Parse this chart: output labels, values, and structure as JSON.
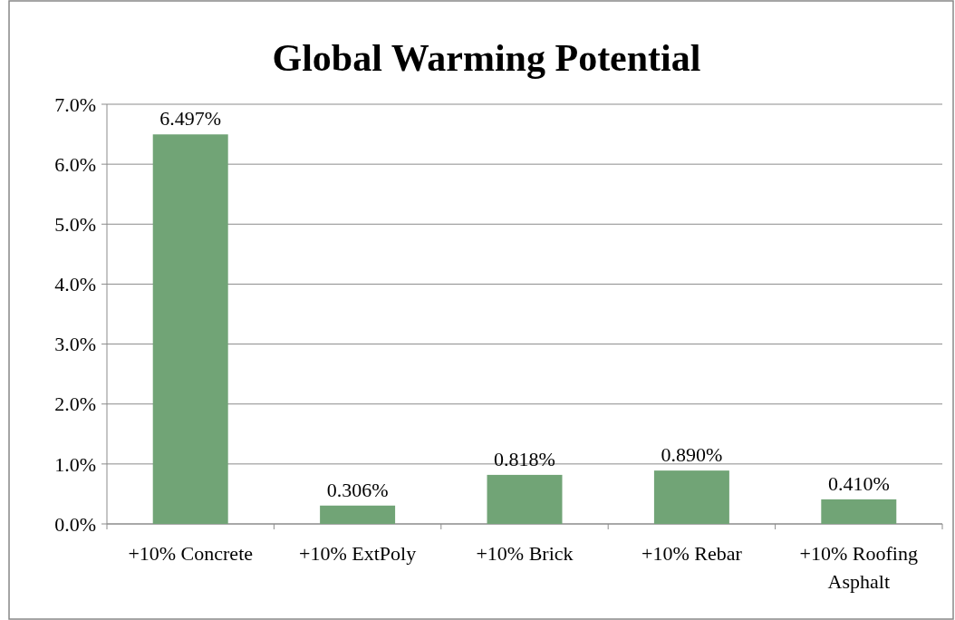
{
  "chart_data": {
    "type": "bar",
    "title": "Global Warming Potential",
    "categories": [
      "+10% Concrete",
      "+10% ExtPoly",
      "+10% Brick",
      "+10% Rebar",
      "+10% Roofing Asphalt"
    ],
    "values": [
      6.497,
      0.306,
      0.818,
      0.89,
      0.41
    ],
    "value_labels": [
      "6.497%",
      "0.306%",
      "0.818%",
      "0.890%",
      "0.410%"
    ],
    "color": "#71a476",
    "ylim": [
      0,
      7
    ],
    "yticks": [
      {
        "value": 0,
        "label": "0.0%"
      },
      {
        "value": 1,
        "label": "1.0%"
      },
      {
        "value": 2,
        "label": "2.0%"
      },
      {
        "value": 3,
        "label": "3.0%"
      },
      {
        "value": 4,
        "label": "4.0%"
      },
      {
        "value": 5,
        "label": "5.0%"
      },
      {
        "value": 6,
        "label": "6.0%"
      },
      {
        "value": 7,
        "label": "7.0%"
      }
    ],
    "grid": "y"
  }
}
